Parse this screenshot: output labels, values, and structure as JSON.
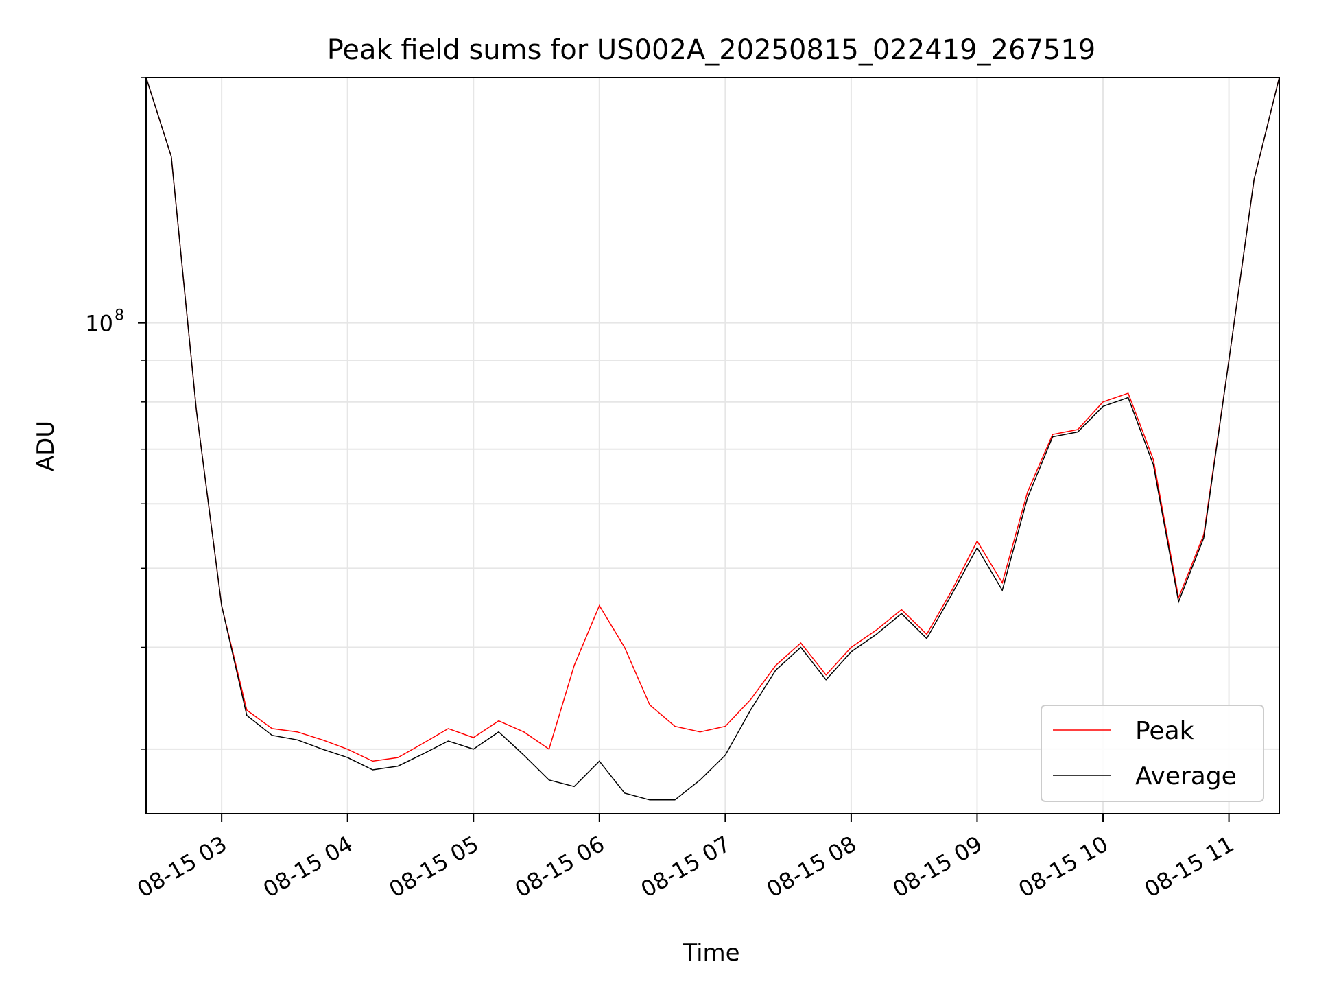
{
  "chart_data": {
    "type": "line",
    "title": "Peak field sums for US002A_20250815_022419_267519",
    "xlabel": "Time",
    "ylabel": "ADU",
    "x_axis": {
      "kind": "datetime",
      "start": "2025-08-15T02:24:00",
      "end": "2025-08-15T11:24:00",
      "tick_values": [
        "2025-08-15T03:00",
        "2025-08-15T04:00",
        "2025-08-15T05:00",
        "2025-08-15T06:00",
        "2025-08-15T07:00",
        "2025-08-15T08:00",
        "2025-08-15T09:00",
        "2025-08-15T10:00",
        "2025-08-15T11:00"
      ],
      "tick_labels": [
        "08-15 03",
        "08-15 04",
        "08-15 05",
        "08-15 06",
        "08-15 07",
        "08-15 08",
        "08-15 09",
        "08-15 10",
        "08-15 11"
      ]
    },
    "y_axis": {
      "scale": "log",
      "ylim": [
        25000000,
        200000000
      ],
      "major_ticks": [
        100000000
      ],
      "major_tick_labels": [
        "10"
      ],
      "major_tick_exponents": [
        "8"
      ],
      "minor_ticks": [
        30000000,
        40000000,
        50000000,
        60000000,
        70000000,
        80000000,
        90000000,
        200000000
      ]
    },
    "grid": true,
    "legend": {
      "placement": "lower right"
    },
    "series": [
      {
        "name": "Peak",
        "color": "#ff0000",
        "points": [
          [
            "2025-08-15T02:24",
            200000000
          ],
          [
            "2025-08-15T02:36",
            160000000
          ],
          [
            "2025-08-15T02:48",
            78000000
          ],
          [
            "2025-08-15T03:00",
            45000000
          ],
          [
            "2025-08-15T03:12",
            33500000
          ],
          [
            "2025-08-15T03:24",
            31800000
          ],
          [
            "2025-08-15T03:36",
            31500000
          ],
          [
            "2025-08-15T03:48",
            30800000
          ],
          [
            "2025-08-15T04:00",
            30000000
          ],
          [
            "2025-08-15T04:12",
            29000000
          ],
          [
            "2025-08-15T04:24",
            29300000
          ],
          [
            "2025-08-15T04:36",
            30500000
          ],
          [
            "2025-08-15T04:48",
            31800000
          ],
          [
            "2025-08-15T05:00",
            31000000
          ],
          [
            "2025-08-15T05:12",
            32500000
          ],
          [
            "2025-08-15T05:24",
            31500000
          ],
          [
            "2025-08-15T05:36",
            30000000
          ],
          [
            "2025-08-15T05:48",
            38000000
          ],
          [
            "2025-08-15T06:00",
            45000000
          ],
          [
            "2025-08-15T06:12",
            40000000
          ],
          [
            "2025-08-15T06:24",
            34000000
          ],
          [
            "2025-08-15T06:36",
            32000000
          ],
          [
            "2025-08-15T06:48",
            31500000
          ],
          [
            "2025-08-15T07:00",
            32000000
          ],
          [
            "2025-08-15T07:12",
            34500000
          ],
          [
            "2025-08-15T07:24",
            38000000
          ],
          [
            "2025-08-15T07:36",
            40500000
          ],
          [
            "2025-08-15T07:48",
            37000000
          ],
          [
            "2025-08-15T08:00",
            40000000
          ],
          [
            "2025-08-15T08:12",
            42000000
          ],
          [
            "2025-08-15T08:24",
            44500000
          ],
          [
            "2025-08-15T08:36",
            41500000
          ],
          [
            "2025-08-15T08:48",
            47000000
          ],
          [
            "2025-08-15T09:00",
            54000000
          ],
          [
            "2025-08-15T09:12",
            48000000
          ],
          [
            "2025-08-15T09:24",
            62000000
          ],
          [
            "2025-08-15T09:36",
            73000000
          ],
          [
            "2025-08-15T09:48",
            74000000
          ],
          [
            "2025-08-15T10:00",
            80000000
          ],
          [
            "2025-08-15T10:12",
            82000000
          ],
          [
            "2025-08-15T10:24",
            68000000
          ],
          [
            "2025-08-15T10:36",
            46000000
          ],
          [
            "2025-08-15T10:48",
            55000000
          ],
          [
            "2025-08-15T11:00",
            90000000
          ],
          [
            "2025-08-15T11:12",
            150000000
          ],
          [
            "2025-08-15T11:24",
            200000000
          ]
        ]
      },
      {
        "name": "Average",
        "color": "#000000",
        "points": [
          [
            "2025-08-15T02:24",
            200000000
          ],
          [
            "2025-08-15T02:36",
            160000000
          ],
          [
            "2025-08-15T02:48",
            78000000
          ],
          [
            "2025-08-15T03:00",
            45000000
          ],
          [
            "2025-08-15T03:12",
            33000000
          ],
          [
            "2025-08-15T03:24",
            31200000
          ],
          [
            "2025-08-15T03:36",
            30800000
          ],
          [
            "2025-08-15T03:48",
            30000000
          ],
          [
            "2025-08-15T04:00",
            29300000
          ],
          [
            "2025-08-15T04:12",
            28300000
          ],
          [
            "2025-08-15T04:24",
            28600000
          ],
          [
            "2025-08-15T04:36",
            29600000
          ],
          [
            "2025-08-15T04:48",
            30700000
          ],
          [
            "2025-08-15T05:00",
            30000000
          ],
          [
            "2025-08-15T05:12",
            31500000
          ],
          [
            "2025-08-15T05:24",
            29500000
          ],
          [
            "2025-08-15T05:36",
            27500000
          ],
          [
            "2025-08-15T05:48",
            27000000
          ],
          [
            "2025-08-15T06:00",
            29000000
          ],
          [
            "2025-08-15T06:12",
            26500000
          ],
          [
            "2025-08-15T06:24",
            26000000
          ],
          [
            "2025-08-15T06:36",
            26000000
          ],
          [
            "2025-08-15T06:48",
            27500000
          ],
          [
            "2025-08-15T07:00",
            29500000
          ],
          [
            "2025-08-15T07:12",
            33500000
          ],
          [
            "2025-08-15T07:24",
            37500000
          ],
          [
            "2025-08-15T07:36",
            40000000
          ],
          [
            "2025-08-15T07:48",
            36500000
          ],
          [
            "2025-08-15T08:00",
            39500000
          ],
          [
            "2025-08-15T08:12",
            41500000
          ],
          [
            "2025-08-15T08:24",
            44000000
          ],
          [
            "2025-08-15T08:36",
            41000000
          ],
          [
            "2025-08-15T08:48",
            46500000
          ],
          [
            "2025-08-15T09:00",
            53000000
          ],
          [
            "2025-08-15T09:12",
            47000000
          ],
          [
            "2025-08-15T09:24",
            61000000
          ],
          [
            "2025-08-15T09:36",
            72500000
          ],
          [
            "2025-08-15T09:48",
            73500000
          ],
          [
            "2025-08-15T10:00",
            79000000
          ],
          [
            "2025-08-15T10:12",
            81000000
          ],
          [
            "2025-08-15T10:24",
            67000000
          ],
          [
            "2025-08-15T10:36",
            45500000
          ],
          [
            "2025-08-15T10:48",
            54500000
          ],
          [
            "2025-08-15T11:00",
            90000000
          ],
          [
            "2025-08-15T11:12",
            150000000
          ],
          [
            "2025-08-15T11:24",
            200000000
          ]
        ]
      }
    ]
  }
}
